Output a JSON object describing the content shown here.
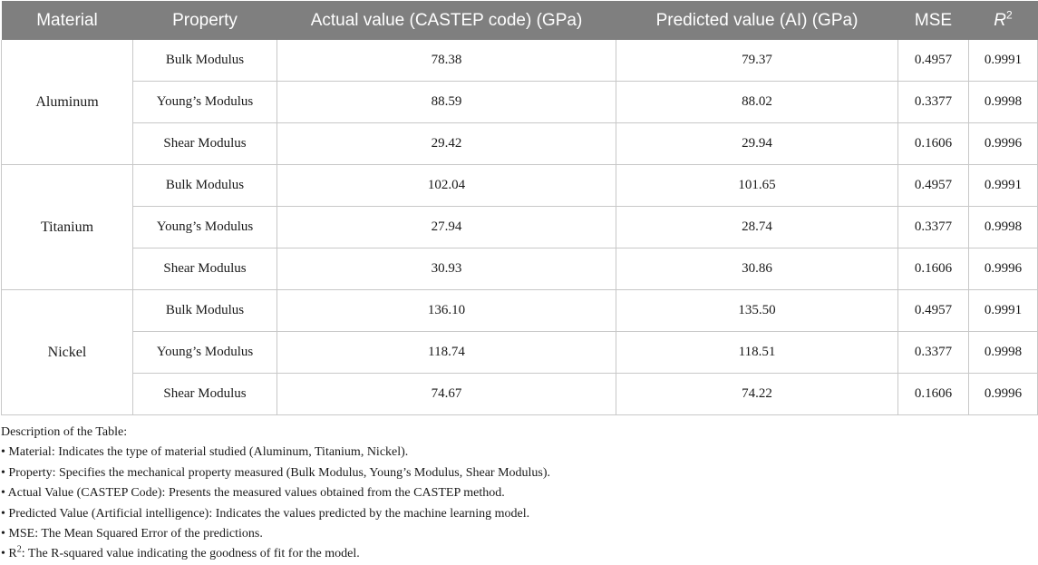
{
  "table": {
    "headers": {
      "material": "Material",
      "property": "Property",
      "actual": "Actual value (CASTEP code) (GPa)",
      "predicted": "Predicted value (AI) (GPa)",
      "mse": "MSE",
      "r2_symbol": "R",
      "r2_superscript": "2"
    },
    "groups": [
      {
        "material": "Aluminum",
        "rows": [
          {
            "property": "Bulk Modulus",
            "actual": "78.38",
            "predicted": "79.37",
            "mse": "0.4957",
            "r2": "0.9991"
          },
          {
            "property": "Young’s Modulus",
            "actual": "88.59",
            "predicted": "88.02",
            "mse": "0.3377",
            "r2": "0.9998"
          },
          {
            "property": "Shear Modulus",
            "actual": "29.42",
            "predicted": "29.94",
            "mse": "0.1606",
            "r2": "0.9996"
          }
        ]
      },
      {
        "material": "Titanium",
        "rows": [
          {
            "property": "Bulk Modulus",
            "actual": "102.04",
            "predicted": "101.65",
            "mse": "0.4957",
            "r2": "0.9991"
          },
          {
            "property": "Young’s Modulus",
            "actual": "27.94",
            "predicted": "28.74",
            "mse": "0.3377",
            "r2": "0.9998"
          },
          {
            "property": "Shear Modulus",
            "actual": "30.93",
            "predicted": "30.86",
            "mse": "0.1606",
            "r2": "0.9996"
          }
        ]
      },
      {
        "material": "Nickel",
        "rows": [
          {
            "property": "Bulk Modulus",
            "actual": "136.10",
            "predicted": "135.50",
            "mse": "0.4957",
            "r2": "0.9991"
          },
          {
            "property": "Young’s Modulus",
            "actual": "118.74",
            "predicted": "118.51",
            "mse": "0.3377",
            "r2": "0.9998"
          },
          {
            "property": "Shear Modulus",
            "actual": "74.67",
            "predicted": "74.22",
            "mse": "0.1606",
            "r2": "0.9996"
          }
        ]
      }
    ]
  },
  "notes": {
    "heading": "Description of the Table:",
    "items": [
      "• Material: Indicates the type of material studied (Aluminum, Titanium, Nickel).",
      "• Property: Specifies the mechanical property measured (Bulk Modulus, Young’s Modulus, Shear Modulus).",
      "• Actual Value (CASTEP Code): Presents the measured values obtained from the CASTEP method.",
      "• Predicted Value (Artificial intelligence): Indicates the values predicted by the machine learning model.",
      "• MSE: The Mean Squared Error of the predictions."
    ],
    "last_item": {
      "prefix": "• R",
      "superscript": "2",
      "text": ": The R-squared value indicating the goodness of fit for the model."
    }
  }
}
